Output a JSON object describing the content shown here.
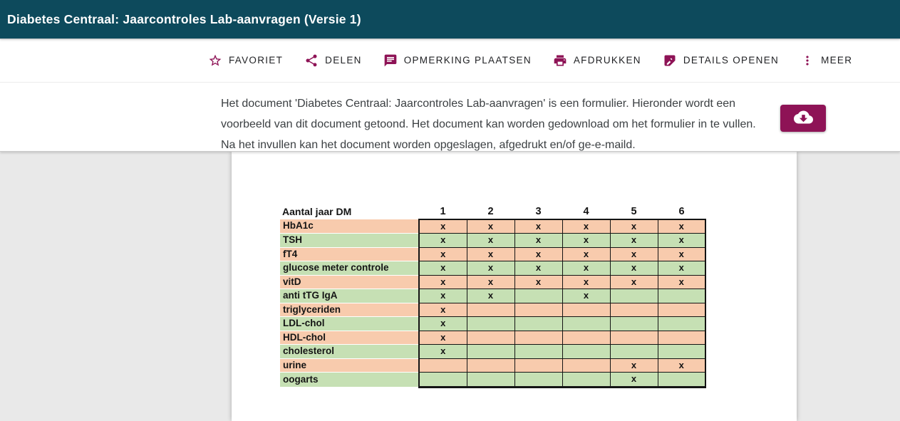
{
  "header": {
    "title": "Diabetes Centraal: Jaarcontroles Lab-aanvragen (Versie 1)"
  },
  "toolbar": {
    "items": [
      {
        "label": "FAVORIET",
        "icon": "star-icon"
      },
      {
        "label": "DELEN",
        "icon": "share-icon"
      },
      {
        "label": "OPMERKING PLAATSEN",
        "icon": "comment-icon"
      },
      {
        "label": "AFDRUKKEN",
        "icon": "printer-icon"
      },
      {
        "label": "DETAILS OPENEN",
        "icon": "details-icon"
      },
      {
        "label": "MEER",
        "icon": "more-vert-icon"
      }
    ]
  },
  "info": {
    "lines": [
      "Het document 'Diabetes Centraal: Jaarcontroles Lab-aanvragen' is een formulier. Hieronder wordt een",
      "voorbeeld van dit document getoond. Het document kan worden gedownload om het formulier in te vullen.",
      "Na het invullen kan het document worden opgeslagen, afgedrukt en/of ge-e-maild."
    ],
    "download_icon": "cloud-download-icon"
  },
  "document": {
    "table": {
      "header_label": "Aantal jaar DM",
      "year_columns": [
        "1",
        "2",
        "3",
        "4",
        "5",
        "6"
      ],
      "rows": [
        {
          "label": "HbA1c",
          "tone": "peach",
          "marks": [
            "x",
            "x",
            "x",
            "x",
            "x",
            "x"
          ]
        },
        {
          "label": "TSH",
          "tone": "green",
          "marks": [
            "x",
            "x",
            "x",
            "x",
            "x",
            "x"
          ]
        },
        {
          "label": "fT4",
          "tone": "peach",
          "marks": [
            "x",
            "x",
            "x",
            "x",
            "x",
            "x"
          ]
        },
        {
          "label": "glucose meter controle",
          "tone": "green",
          "marks": [
            "x",
            "x",
            "x",
            "x",
            "x",
            "x"
          ]
        },
        {
          "label": "vitD",
          "tone": "peach",
          "marks": [
            "x",
            "x",
            "x",
            "x",
            "x",
            "x"
          ]
        },
        {
          "label": "anti tTG IgA",
          "tone": "green",
          "marks": [
            "x",
            "x",
            "",
            "x",
            "",
            ""
          ]
        },
        {
          "label": "triglyceriden",
          "tone": "peach",
          "marks": [
            "x",
            "",
            "",
            "",
            "",
            ""
          ]
        },
        {
          "label": "LDL-chol",
          "tone": "green",
          "marks": [
            "x",
            "",
            "",
            "",
            "",
            ""
          ]
        },
        {
          "label": "HDL-chol",
          "tone": "peach",
          "marks": [
            "x",
            "",
            "",
            "",
            "",
            ""
          ]
        },
        {
          "label": "cholesterol",
          "tone": "green",
          "marks": [
            "x",
            "",
            "",
            "",
            "",
            ""
          ]
        },
        {
          "label": "urine",
          "tone": "peach",
          "marks": [
            "",
            "",
            "",
            "",
            "x",
            "x"
          ]
        },
        {
          "label": "oogarts",
          "tone": "green",
          "marks": [
            "",
            "",
            "",
            "",
            "x",
            ""
          ]
        }
      ]
    }
  },
  "colors": {
    "header_bg": "#0d4a5c",
    "accent": "#8e1356",
    "row_peach": "#f8cbad",
    "row_green": "#c6e0b4",
    "viewer_bg": "#e9e9e9"
  }
}
